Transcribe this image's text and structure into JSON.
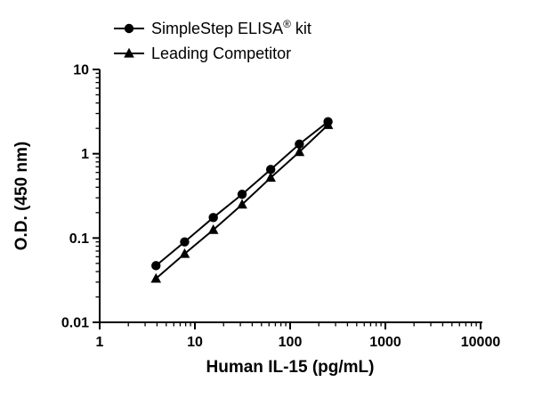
{
  "figure": {
    "background": "#ffffff",
    "foreground": "#000000"
  },
  "chart_data": {
    "type": "line",
    "title": "",
    "xlabel": "Human IL-15 (pg/mL)",
    "ylabel": "O.D. (450 nm)",
    "x_scale": "log",
    "y_scale": "log",
    "xlim": [
      1,
      10000
    ],
    "ylim": [
      0.01,
      10
    ],
    "x_major_ticks": [
      "1",
      "10",
      "100",
      "1000",
      "10000"
    ],
    "y_major_ticks": [
      "0.01",
      "0.1",
      "1",
      "10"
    ],
    "minor_ticks": "log-decades",
    "grid": false,
    "legend_position": "top-left-above-plot",
    "series": [
      {
        "name": "SimpleStep ELISA® kit",
        "marker": "circle",
        "color": "#000000",
        "x": [
          3.9,
          7.8,
          15.6,
          31.3,
          62.5,
          125,
          250
        ],
        "y": [
          0.047,
          0.09,
          0.175,
          0.33,
          0.65,
          1.3,
          2.4
        ]
      },
      {
        "name": "Leading Competitor",
        "marker": "triangle",
        "color": "#000000",
        "x": [
          3.9,
          7.8,
          15.6,
          31.3,
          62.5,
          125,
          250
        ],
        "y": [
          0.033,
          0.065,
          0.125,
          0.25,
          0.52,
          1.05,
          2.2
        ]
      }
    ]
  }
}
